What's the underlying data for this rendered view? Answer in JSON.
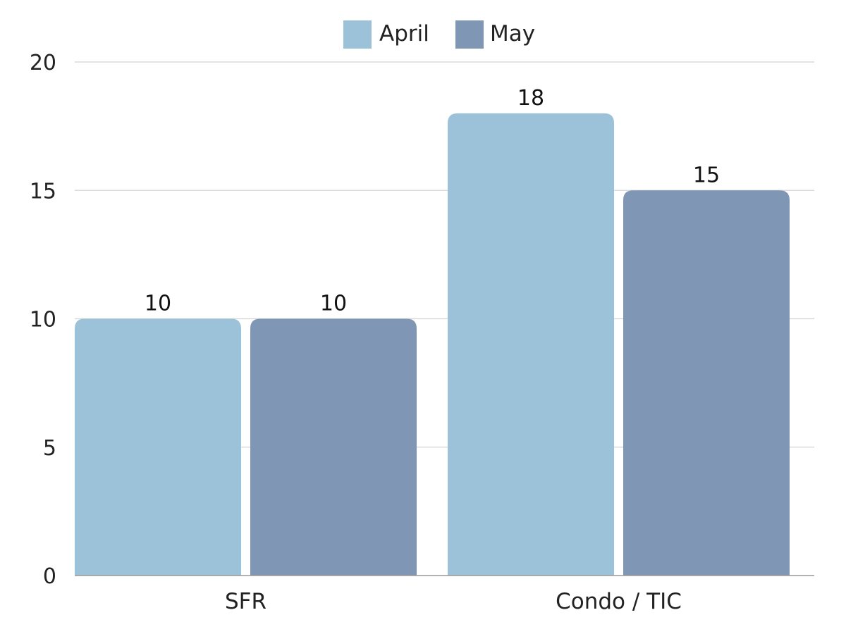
{
  "chart_data": {
    "type": "bar",
    "categories": [
      "SFR",
      "Condo / TIC"
    ],
    "series": [
      {
        "name": "April",
        "values": [
          10,
          18
        ],
        "color": "#9bc2d8"
      },
      {
        "name": "May",
        "values": [
          10,
          15
        ],
        "color": "#7f97b4"
      }
    ],
    "ylim": [
      0,
      20
    ],
    "yticks": [
      0,
      5,
      10,
      15,
      20
    ],
    "grid": true,
    "legend_position": "top",
    "data_labels": true
  }
}
